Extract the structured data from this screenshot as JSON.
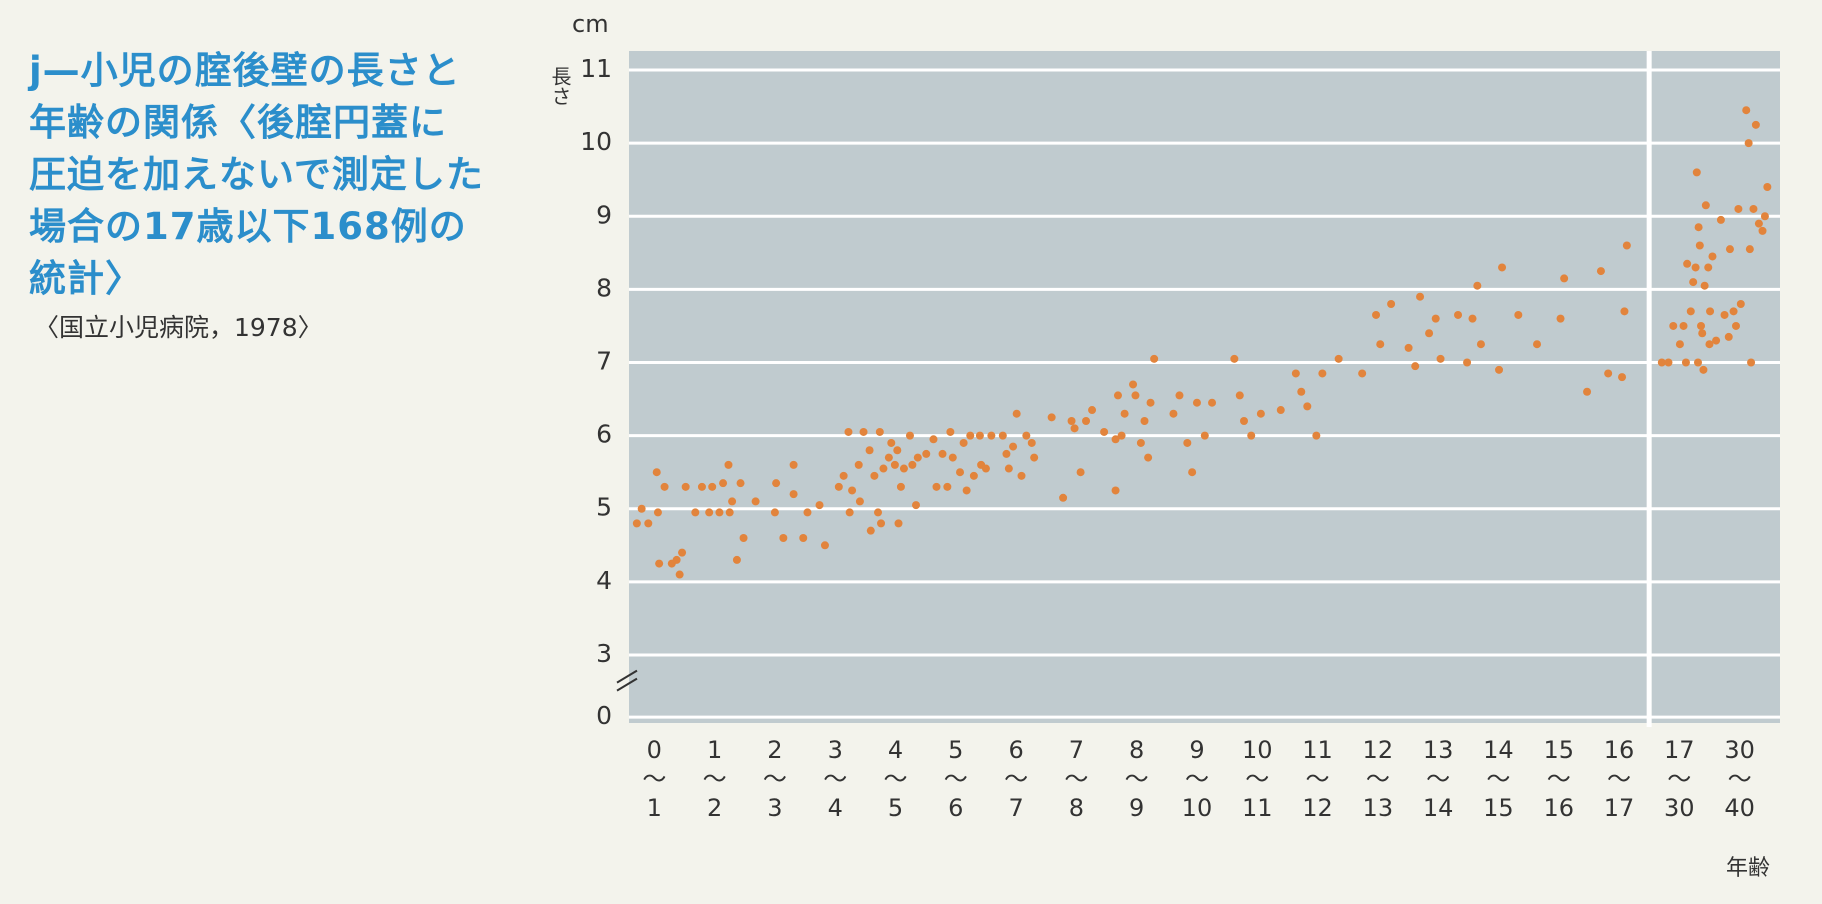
{
  "chart_data": {
    "type": "scatter",
    "title": [
      "j—小児の腟後壁の長さと",
      "年齢の関係〈後腟円蓋に",
      "圧迫を加えないで測定した",
      "場合の17歳以下168例の",
      "統計〉"
    ],
    "source": "〈国立小児病院，1978〉",
    "ylabel": "長さ",
    "yunit": "cm",
    "xlabel": "年齢",
    "color": "#e2843c",
    "grid": true,
    "xlim": [
      0.08,
      19.17
    ],
    "ylim": [
      -0.08,
      11.26
    ],
    "xbreak": 17,
    "ybreak": [
      0.5,
      2.65
    ],
    "yticks": [
      0,
      3,
      4,
      5,
      6,
      7,
      8,
      9,
      10,
      11
    ],
    "xticks": [
      {
        "value": 0.5,
        "label": "0\n〜\n1"
      },
      {
        "value": 1.5,
        "label": "1\n〜\n2"
      },
      {
        "value": 2.5,
        "label": "2\n〜\n3"
      },
      {
        "value": 3.5,
        "label": "3\n〜\n4"
      },
      {
        "value": 4.5,
        "label": "4\n〜\n5"
      },
      {
        "value": 5.5,
        "label": "5\n〜\n6"
      },
      {
        "value": 6.5,
        "label": "6\n〜\n7"
      },
      {
        "value": 7.5,
        "label": "7\n〜\n8"
      },
      {
        "value": 8.5,
        "label": "8\n〜\n9"
      },
      {
        "value": 9.5,
        "label": "9\n〜\n10"
      },
      {
        "value": 10.5,
        "label": "10\n〜\n11"
      },
      {
        "value": 11.5,
        "label": "11\n〜\n12"
      },
      {
        "value": 12.5,
        "label": "12\n〜\n13"
      },
      {
        "value": 13.5,
        "label": "13\n〜\n14"
      },
      {
        "value": 14.5,
        "label": "14\n〜\n15"
      },
      {
        "value": 15.5,
        "label": "15\n〜\n16"
      },
      {
        "value": 16.5,
        "label": "16\n〜\n17"
      },
      {
        "value": 17.5,
        "label": "17\n〜\n30"
      },
      {
        "value": 18.5,
        "label": "30\n〜\n40"
      }
    ],
    "x": [
      0.21,
      0.29,
      0.4,
      0.54,
      0.56,
      0.58,
      0.67,
      0.79,
      0.87,
      0.92,
      0.96,
      1.02,
      1.18,
      1.29,
      1.41,
      1.46,
      1.58,
      1.64,
      1.73,
      1.75,
      1.79,
      1.87,
      1.93,
      1.98,
      2.18,
      2.5,
      2.52,
      2.64,
      2.81,
      2.81,
      2.97,
      3.04,
      3.24,
      3.33,
      3.56,
      3.64,
      3.72,
      3.74,
      3.78,
      3.89,
      3.91,
      3.97,
      4.07,
      4.09,
      4.15,
      4.21,
      4.24,
      4.26,
      4.3,
      4.39,
      4.43,
      4.49,
      4.53,
      4.55,
      4.59,
      4.64,
      4.74,
      4.78,
      4.84,
      4.87,
      5.01,
      5.13,
      5.18,
      5.28,
      5.36,
      5.41,
      5.45,
      5.57,
      5.63,
      5.68,
      5.74,
      5.8,
      5.9,
      5.92,
      6.0,
      6.09,
      6.28,
      6.34,
      6.38,
      6.45,
      6.51,
      6.59,
      6.67,
      6.76,
      6.8,
      7.09,
      7.28,
      7.42,
      7.47,
      7.57,
      7.66,
      7.76,
      7.96,
      8.15,
      8.15,
      8.19,
      8.25,
      8.3,
      8.44,
      8.48,
      8.57,
      8.63,
      8.69,
      8.73,
      8.79,
      9.11,
      9.21,
      9.34,
      9.42,
      9.5,
      9.63,
      9.75,
      10.12,
      10.21,
      10.28,
      10.4,
      10.56,
      10.89,
      11.14,
      11.23,
      11.33,
      11.48,
      11.58,
      11.85,
      12.24,
      12.47,
      12.54,
      12.72,
      13.01,
      13.12,
      13.2,
      13.35,
      13.46,
      13.54,
      13.83,
      13.98,
      14.07,
      14.15,
      14.21,
      14.51,
      14.56,
      14.83,
      15.14,
      15.53,
      15.59,
      15.97,
      16.2,
      16.32,
      16.55,
      16.59,
      16.63,
      17.21,
      17.32,
      17.4,
      17.51,
      17.57,
      17.61,
      17.63,
      17.69,
      17.73,
      17.77,
      17.79,
      17.81,
      17.82,
      17.84,
      17.86,
      17.88,
      17.9,
      17.92,
      17.94,
      17.98,
      18.0,
      18.01,
      18.05,
      18.11,
      18.19,
      18.25,
      18.32,
      18.34,
      18.4,
      18.44,
      18.48,
      18.52,
      18.61,
      18.65,
      18.67,
      18.69,
      18.73,
      18.77,
      18.82,
      18.88,
      18.92,
      18.96
    ],
    "values": [
      4.8,
      5.0,
      4.8,
      5.5,
      4.95,
      4.25,
      5.3,
      4.25,
      4.3,
      4.1,
      4.4,
      5.3,
      4.95,
      5.3,
      4.95,
      5.3,
      4.95,
      5.35,
      5.6,
      4.95,
      5.1,
      4.3,
      5.35,
      4.6,
      5.1,
      4.95,
      5.35,
      4.6,
      5.6,
      5.2,
      4.6,
      4.95,
      5.05,
      4.5,
      5.3,
      5.45,
      6.05,
      4.95,
      5.25,
      5.6,
      5.1,
      6.05,
      5.8,
      4.7,
      5.45,
      4.95,
      6.05,
      4.8,
      5.55,
      5.7,
      5.9,
      5.6,
      5.8,
      4.8,
      5.3,
      5.55,
      6.0,
      5.6,
      5.05,
      5.7,
      5.75,
      5.95,
      5.3,
      5.75,
      5.3,
      6.05,
      5.7,
      5.5,
      5.9,
      5.25,
      6.0,
      5.45,
      6.0,
      5.6,
      5.55,
      6.0,
      6.0,
      5.75,
      5.55,
      5.85,
      6.3,
      5.45,
      6.0,
      5.9,
      5.7,
      6.25,
      5.15,
      6.2,
      6.1,
      5.5,
      6.2,
      6.35,
      6.05,
      5.25,
      5.95,
      6.55,
      6.0,
      6.3,
      6.7,
      6.55,
      5.9,
      6.2,
      5.7,
      6.45,
      7.05,
      6.3,
      6.55,
      5.9,
      5.5,
      6.45,
      6.0,
      6.45,
      7.05,
      6.55,
      6.2,
      6.0,
      6.3,
      6.35,
      6.85,
      6.6,
      6.4,
      6.0,
      6.85,
      7.05,
      6.85,
      7.65,
      7.25,
      7.8,
      7.2,
      6.95,
      7.9,
      7.4,
      7.6,
      7.05,
      7.65,
      7.0,
      7.6,
      8.05,
      7.25,
      6.9,
      8.3,
      7.65,
      7.25,
      7.6,
      8.15,
      6.6,
      8.25,
      6.85,
      6.8,
      7.7,
      8.6,
      7.0,
      7.0,
      7.5,
      7.25,
      7.5,
      7.0,
      8.35,
      7.7,
      8.1,
      8.3,
      9.6,
      7.0,
      8.85,
      8.6,
      7.5,
      7.4,
      6.9,
      8.05,
      9.15,
      8.3,
      7.25,
      7.7,
      8.45,
      7.3,
      8.95,
      7.65,
      7.35,
      8.55,
      7.7,
      7.5,
      9.1,
      7.8,
      10.45,
      10.0,
      8.55,
      7.0,
      9.1,
      10.25,
      8.9,
      8.8,
      9.0,
      9.4
    ]
  }
}
